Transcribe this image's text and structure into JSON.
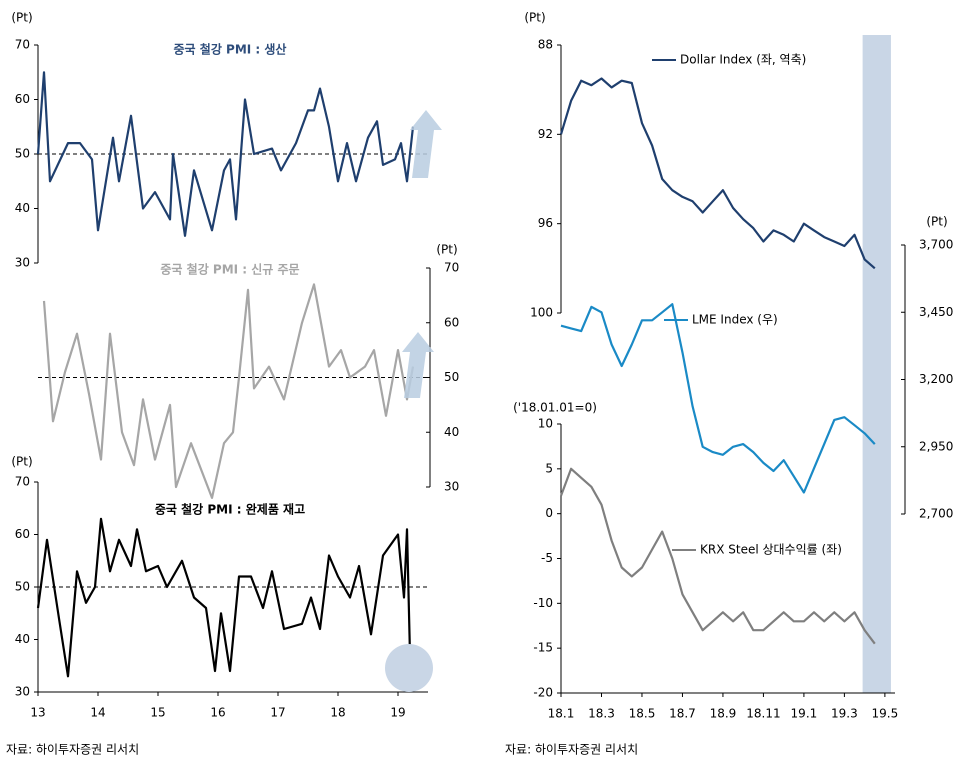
{
  "chart_data": [
    {
      "type": "line",
      "title": "중국 철강 PMI : 생산",
      "ylabel": "(Pt)",
      "ylim": [
        30,
        70
      ],
      "yticks": [
        30,
        40,
        50,
        60,
        70
      ],
      "xlim": [
        13,
        19.5
      ],
      "reference_line": 50,
      "x": [
        13.0,
        13.1,
        13.2,
        13.5,
        13.7,
        13.9,
        14.0,
        14.25,
        14.35,
        14.55,
        14.75,
        14.95,
        15.2,
        15.25,
        15.45,
        15.6,
        15.9,
        16.1,
        16.2,
        16.3,
        16.45,
        16.6,
        16.9,
        17.05,
        17.3,
        17.5,
        17.6,
        17.7,
        17.85,
        18.0,
        18.15,
        18.3,
        18.5,
        18.65,
        18.75,
        18.95,
        19.05,
        19.15,
        19.25
      ],
      "series": [
        {
          "color": "#1f3f6e",
          "values": [
            50,
            65,
            45,
            52,
            52,
            49,
            36,
            53,
            45,
            57,
            40,
            43,
            38,
            50,
            35,
            47,
            36,
            47,
            49,
            38,
            60,
            50,
            51,
            47,
            52,
            58,
            58,
            62,
            55,
            45,
            52,
            45,
            53,
            56,
            48,
            49,
            52,
            45,
            55
          ]
        }
      ]
    },
    {
      "type": "line",
      "title": "중국 철강 PMI : 신규 주문",
      "ylabel": "(Pt)",
      "ylim": [
        30,
        70
      ],
      "yticks": [
        30,
        40,
        50,
        60,
        70
      ],
      "xlim": [
        13,
        19.5
      ],
      "reference_line": 50,
      "x": [
        13.1,
        13.25,
        13.45,
        13.65,
        13.85,
        14.05,
        14.2,
        14.4,
        14.6,
        14.75,
        14.95,
        15.2,
        15.3,
        15.55,
        15.9,
        16.1,
        16.25,
        16.35,
        16.5,
        16.6,
        16.85,
        17.1,
        17.4,
        17.6,
        17.85,
        18.05,
        18.2,
        18.45,
        18.6,
        18.8,
        19.0,
        19.15,
        19.25
      ],
      "series": [
        {
          "color": "#a6a6a6",
          "values": [
            64,
            42,
            51,
            58,
            47,
            35,
            58,
            40,
            34,
            46,
            35,
            45,
            30,
            38,
            28,
            38,
            40,
            50,
            66,
            48,
            52,
            46,
            60,
            67,
            52,
            55,
            50,
            52,
            55,
            43,
            55,
            46,
            52
          ]
        }
      ]
    },
    {
      "type": "line",
      "title": "중국 철강 PMI : 완제품 재고",
      "ylabel": "(Pt)",
      "ylim": [
        30,
        70
      ],
      "yticks": [
        30,
        40,
        50,
        60,
        70
      ],
      "xlim": [
        13,
        19.5
      ],
      "xticks": [
        13,
        14,
        15,
        16,
        17,
        18,
        19
      ],
      "reference_line": 50,
      "x": [
        13.0,
        13.15,
        13.35,
        13.5,
        13.65,
        13.8,
        13.95,
        14.05,
        14.2,
        14.35,
        14.55,
        14.65,
        14.8,
        15.0,
        15.15,
        15.4,
        15.6,
        15.8,
        15.95,
        16.05,
        16.2,
        16.35,
        16.55,
        16.75,
        16.9,
        17.1,
        17.4,
        17.55,
        17.7,
        17.85,
        18.0,
        18.2,
        18.35,
        18.55,
        18.75,
        19.0,
        19.1,
        19.15,
        19.2,
        19.25,
        19.35
      ],
      "series": [
        {
          "color": "#000000",
          "values": [
            46,
            59,
            44,
            33,
            53,
            47,
            50,
            63,
            53,
            59,
            54,
            61,
            53,
            54,
            50,
            55,
            48,
            46,
            34,
            45,
            34,
            52,
            52,
            46,
            53,
            42,
            43,
            48,
            42,
            56,
            52,
            48,
            54,
            41,
            56,
            60,
            48,
            61,
            37,
            31,
            38
          ]
        }
      ]
    },
    {
      "type": "line",
      "ylabel": "(Pt)",
      "ylim": [
        100,
        88
      ],
      "yticks": [
        88,
        92,
        96,
        100
      ],
      "xlim": [
        0,
        16.5
      ],
      "shaded_period": [
        14.9,
        16.3
      ],
      "x": [
        0,
        0.5,
        1,
        1.5,
        2,
        2.5,
        3,
        3.5,
        4,
        4.5,
        5,
        5.5,
        6,
        6.5,
        7,
        7.5,
        8,
        8.5,
        9,
        9.5,
        10,
        10.5,
        11,
        11.5,
        12,
        12.5,
        13,
        13.5,
        14,
        14.5,
        15,
        15.5
      ],
      "series": [
        {
          "name": "Dollar Index (좌, 역축)",
          "color": "#1f3f6e",
          "values": [
            92.0,
            90.5,
            89.6,
            89.8,
            89.5,
            89.9,
            89.6,
            89.7,
            91.5,
            92.5,
            94.0,
            94.5,
            94.8,
            95.0,
            95.5,
            95.0,
            94.5,
            95.3,
            95.8,
            96.2,
            96.8,
            96.3,
            96.5,
            96.8,
            96.0,
            96.3,
            96.6,
            96.8,
            97.0,
            96.5,
            97.6,
            98.0
          ]
        }
      ]
    },
    {
      "type": "line",
      "ylabel": "(Pt)",
      "ylim": [
        2700,
        3700
      ],
      "yticks": [
        {
          "value": 2700,
          "label": "2,700"
        },
        {
          "value": 2950,
          "label": "2,950"
        },
        {
          "value": 3200,
          "label": "3,200"
        },
        {
          "value": 3450,
          "label": "3,450"
        },
        {
          "value": 3700,
          "label": "3,700"
        }
      ],
      "xlim": [
        0,
        16.5
      ],
      "x": [
        0,
        0.5,
        1,
        1.5,
        2,
        2.5,
        3,
        3.5,
        4,
        4.5,
        5,
        5.5,
        6,
        6.5,
        7,
        7.5,
        8,
        8.5,
        9,
        9.5,
        10,
        10.5,
        11,
        11.5,
        12,
        12.5,
        13,
        13.5,
        14,
        14.5,
        15,
        15.5
      ],
      "series": [
        {
          "name": "LME Index (우)",
          "color": "#1a8ac6",
          "values": [
            3400,
            3390,
            3380,
            3470,
            3450,
            3330,
            3250,
            3330,
            3420,
            3420,
            3450,
            3480,
            3300,
            3100,
            2950,
            2930,
            2920,
            2950,
            2960,
            2930,
            2890,
            2860,
            2900,
            2840,
            2780,
            2870,
            2960,
            3050,
            3060,
            3030,
            3000,
            2960
          ]
        }
      ]
    },
    {
      "type": "line",
      "ylabel": "('18.01.01=0)",
      "ylim": [
        -20,
        10
      ],
      "yticks": [
        -20,
        -15,
        -10,
        -5,
        0,
        5,
        10
      ],
      "xlim": [
        0,
        16.5
      ],
      "xticks": [
        {
          "value": 0,
          "label": "18.1"
        },
        {
          "value": 2,
          "label": "18.3"
        },
        {
          "value": 4,
          "label": "18.5"
        },
        {
          "value": 6,
          "label": "18.7"
        },
        {
          "value": 8,
          "label": "18.9"
        },
        {
          "value": 10,
          "label": "18.11"
        },
        {
          "value": 12,
          "label": "19.1"
        },
        {
          "value": 14,
          "label": "19.3"
        },
        {
          "value": 16,
          "label": "19.5"
        }
      ],
      "x": [
        0,
        0.5,
        1,
        1.5,
        2,
        2.5,
        3,
        3.5,
        4,
        4.5,
        5,
        5.5,
        6,
        6.5,
        7,
        7.5,
        8,
        8.5,
        9,
        9.5,
        10,
        10.5,
        11,
        11.5,
        12,
        12.5,
        13,
        13.5,
        14,
        14.5,
        15,
        15.5
      ],
      "series": [
        {
          "name": "KRX Steel 상대수익률 (좌)",
          "color": "#7f7f7f",
          "values": [
            2,
            5,
            4,
            3,
            1,
            -3,
            -6,
            -7,
            -6,
            -4,
            -2,
            -5,
            -9,
            -11,
            -13,
            -12,
            -11,
            -12,
            -11,
            -13,
            -13,
            -12,
            -11,
            -12,
            -12,
            -11,
            -12,
            -11,
            -12,
            -11,
            -13,
            -14.5
          ]
        }
      ]
    }
  ],
  "sources": [
    "자료: 하이투자증권 리서치",
    "자료: 하이투자증권 리서치"
  ]
}
